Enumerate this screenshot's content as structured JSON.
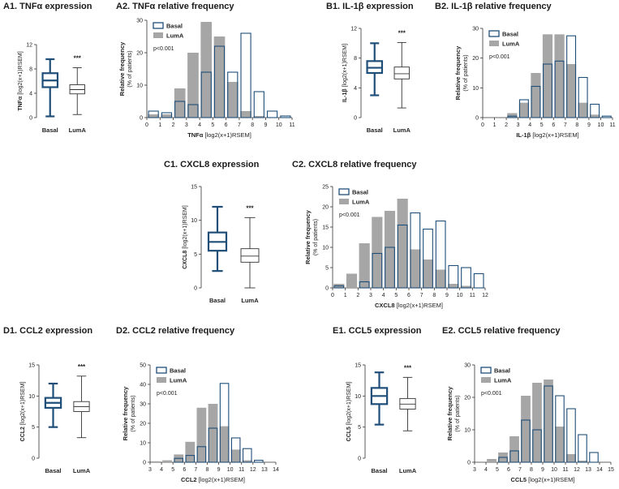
{
  "colors": {
    "basal": "#1f4e79",
    "lumA_fill": "#a6a6a6",
    "lumA_stroke": "#555555",
    "axis": "#333333"
  },
  "groups": [
    "Basal",
    "LumA"
  ],
  "sig": "***",
  "pval": "p<0.001",
  "ylabel_rel": "Relative frequency",
  "ylabel_rel_sub": "(% of patients)",
  "chart_data": [
    {
      "id": "A1",
      "type": "box",
      "title": "A1. TNFα expression",
      "ylabel_bold": "TNFα",
      "ylabel_rest": " [log2(x+1)RSEM]",
      "ylim": [
        0,
        12
      ],
      "yticks": [
        0,
        4,
        8,
        12
      ],
      "boxes": [
        {
          "name": "Basal",
          "min": 0.2,
          "q1": 5.0,
          "median": 6.1,
          "q3": 7.3,
          "max": 9.6
        },
        {
          "name": "LumA",
          "min": 0.5,
          "q1": 3.9,
          "median": 4.6,
          "q3": 5.4,
          "max": 8.2
        }
      ]
    },
    {
      "id": "A2",
      "type": "bar",
      "title": "A2. TNFα relative frequency",
      "xlabel_bold": "TNFα",
      "xlabel_rest": " [log2(x+1)RSEM]",
      "ylim": [
        0,
        30
      ],
      "yticks": [
        0,
        10,
        20,
        30
      ],
      "xticks": [
        0,
        1,
        2,
        3,
        4,
        5,
        6,
        7,
        8,
        9,
        10,
        11
      ],
      "bins": [
        0,
        1,
        2,
        3,
        4,
        5,
        6,
        7,
        8,
        9,
        10
      ],
      "series": [
        {
          "name": "Basal",
          "values": [
            2,
            1.5,
            5,
            4,
            14,
            22,
            14,
            26,
            8,
            2,
            0.5
          ]
        },
        {
          "name": "LumA",
          "values": [
            1,
            1,
            9,
            20,
            29.5,
            25,
            11,
            2,
            0.5,
            0,
            0
          ]
        }
      ]
    },
    {
      "id": "B1",
      "type": "box",
      "title": "B1. IL-1β expression",
      "ylabel_bold": "IL-1β",
      "ylabel_rest": " [log2(x+1)RSEM]",
      "ylim": [
        0,
        12
      ],
      "yticks": [
        0,
        4,
        8,
        12
      ],
      "boxes": [
        {
          "name": "Basal",
          "min": 3.0,
          "q1": 6.0,
          "median": 6.7,
          "q3": 7.6,
          "max": 10.0
        },
        {
          "name": "LumA",
          "min": 1.3,
          "q1": 5.2,
          "median": 5.9,
          "q3": 6.8,
          "max": 10.1
        }
      ]
    },
    {
      "id": "B2",
      "type": "bar",
      "title": "B2. IL-1β relative frequency",
      "xlabel_bold": "IL-1β",
      "xlabel_rest": " [log2(x+1)RSEM]",
      "ylim": [
        0,
        30
      ],
      "yticks": [
        0,
        10,
        20,
        30
      ],
      "xticks": [
        0,
        1,
        2,
        3,
        4,
        5,
        6,
        7,
        8,
        9,
        10,
        11
      ],
      "bins": [
        0,
        1,
        2,
        3,
        4,
        5,
        6,
        7,
        8,
        9,
        10
      ],
      "series": [
        {
          "name": "Basal",
          "values": [
            0,
            0,
            0.5,
            6,
            10.5,
            18,
            19,
            27.5,
            13.5,
            4.5,
            0.5
          ]
        },
        {
          "name": "LumA",
          "values": [
            0,
            0,
            1.5,
            5,
            15,
            28,
            28,
            18,
            5,
            1,
            0
          ]
        }
      ]
    },
    {
      "id": "C1",
      "type": "box",
      "title": "C1. CXCL8 expression",
      "ylabel_bold": "CXCL8",
      "ylabel_rest": " [log2(x+1)RSEM]",
      "ylim": [
        0,
        15
      ],
      "yticks": [
        0,
        5,
        10,
        15
      ],
      "boxes": [
        {
          "name": "Basal",
          "min": 2.5,
          "q1": 5.5,
          "median": 6.8,
          "q3": 8.2,
          "max": 12.0
        },
        {
          "name": "LumA",
          "min": 0,
          "q1": 3.8,
          "median": 4.7,
          "q3": 5.8,
          "max": 10.4
        }
      ]
    },
    {
      "id": "C2",
      "type": "bar",
      "title": "C2. CXCL8 relative frequency",
      "xlabel_bold": "CXCL8",
      "xlabel_rest": " [log2(x+1)RSEM]",
      "ylim": [
        0,
        25
      ],
      "yticks": [
        0,
        5,
        10,
        15,
        20,
        25
      ],
      "xticks": [
        0,
        1,
        2,
        3,
        4,
        5,
        6,
        7,
        8,
        9,
        10,
        11,
        12
      ],
      "bins": [
        0,
        1,
        2,
        3,
        4,
        5,
        6,
        7,
        8,
        9,
        10,
        11
      ],
      "series": [
        {
          "name": "Basal",
          "values": [
            0.5,
            0,
            1.5,
            8.5,
            10,
            15.5,
            18.5,
            14.5,
            16.5,
            5.5,
            5,
            3.5
          ]
        },
        {
          "name": "LumA",
          "values": [
            1,
            3.5,
            11,
            17.5,
            19,
            22,
            9.5,
            7,
            4.5,
            1,
            0.5,
            0
          ]
        }
      ]
    },
    {
      "id": "D1",
      "type": "box",
      "title": "D1. CCL2 expression",
      "ylabel_bold": "CCL2",
      "ylabel_rest": " [log2(x+1)RSEM]",
      "ylim": [
        0,
        15
      ],
      "yticks": [
        0,
        5,
        10,
        15
      ],
      "boxes": [
        {
          "name": "Basal",
          "min": 5.0,
          "q1": 8.1,
          "median": 8.9,
          "q3": 9.7,
          "max": 12.0
        },
        {
          "name": "LumA",
          "min": 3.3,
          "q1": 7.5,
          "median": 8.3,
          "q3": 9.1,
          "max": 13.2
        }
      ]
    },
    {
      "id": "D2",
      "type": "bar",
      "title": "D2. CCL2 relative frequency",
      "xlabel_bold": "CCL2",
      "xlabel_rest": " [log2(x+1)RSEM]",
      "ylim": [
        0,
        50
      ],
      "yticks": [
        0,
        10,
        20,
        30,
        40,
        50
      ],
      "xticks": [
        3,
        4,
        5,
        6,
        7,
        8,
        9,
        10,
        11,
        12,
        13,
        14
      ],
      "bins": [
        3,
        4,
        5,
        6,
        7,
        8,
        9,
        10,
        11,
        12,
        13
      ],
      "series": [
        {
          "name": "Basal",
          "values": [
            0,
            0,
            2,
            3.5,
            8,
            17.5,
            40.5,
            12.5,
            7,
            1,
            0
          ]
        },
        {
          "name": "LumA",
          "values": [
            0.5,
            1,
            4,
            10.5,
            28,
            30,
            18.5,
            6.5,
            1,
            0,
            0
          ]
        }
      ]
    },
    {
      "id": "E1",
      "type": "box",
      "title": "E1. CCL5 expression",
      "ylabel_bold": "CCL5",
      "ylabel_rest": " [log2(x+1)RSEM]",
      "ylim": [
        0,
        15
      ],
      "yticks": [
        0,
        5,
        10,
        15
      ],
      "boxes": [
        {
          "name": "Basal",
          "min": 5.4,
          "q1": 8.7,
          "median": 10.0,
          "q3": 11.3,
          "max": 13.8
        },
        {
          "name": "LumA",
          "min": 4.4,
          "q1": 7.9,
          "median": 8.7,
          "q3": 9.6,
          "max": 13.0
        }
      ]
    },
    {
      "id": "E2",
      "type": "bar",
      "title": "E2. CCL5 relative frequency",
      "xlabel_bold": "CCL5",
      "xlabel_rest": " [log2(x+1)RSEM]",
      "ylim": [
        0,
        30
      ],
      "yticks": [
        0,
        10,
        20,
        30
      ],
      "xticks": [
        3,
        4,
        5,
        6,
        7,
        8,
        9,
        10,
        11,
        12,
        13,
        14,
        15
      ],
      "bins": [
        3,
        4,
        5,
        6,
        7,
        8,
        9,
        10,
        11,
        12,
        13,
        14
      ],
      "series": [
        {
          "name": "Basal",
          "values": [
            0,
            0,
            1.5,
            3.5,
            13,
            10,
            23.5,
            20.5,
            16.5,
            8.5,
            3,
            0
          ]
        },
        {
          "name": "LumA",
          "values": [
            0,
            1,
            3,
            8,
            20.5,
            24.5,
            25.5,
            11,
            2.5,
            0.5,
            0,
            0
          ]
        }
      ]
    }
  ]
}
